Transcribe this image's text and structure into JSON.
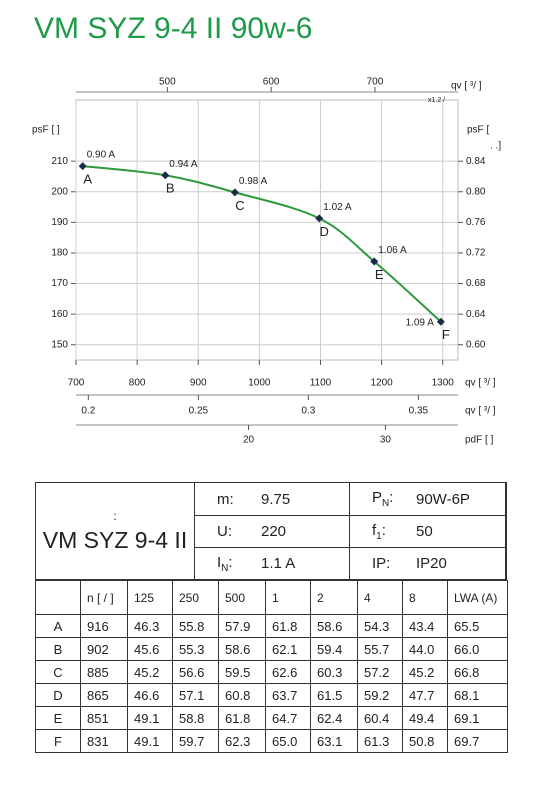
{
  "title": "VM SYZ 9-4 II 90w-6",
  "chart_data": {
    "type": "line",
    "color": "#2e9a3c",
    "point_color": "#1c2a4a",
    "grid": true,
    "x": [
      711,
      846,
      960,
      1098,
      1188,
      1297
    ],
    "values": [
      208.4,
      205.4,
      199.8,
      191.3,
      177.2,
      157.5
    ],
    "point_labels": [
      "A",
      "B",
      "C",
      "D",
      "E",
      "F"
    ],
    "current_labels": [
      "0.90 A",
      "0.94 A",
      "0.98 A",
      "1.02 A",
      "1.06 A",
      "1.09 A"
    ],
    "xlim": [
      700,
      1325
    ],
    "xticks": [
      700,
      800,
      900,
      1000,
      1100,
      1200,
      1300
    ],
    "x_label": "qv [  ³/  ]",
    "ylim": [
      145,
      230
    ],
    "yticks": [
      210,
      200,
      190,
      180,
      170,
      160,
      150
    ],
    "y_label": "psF [   ]",
    "y2lim": [
      0.58,
      0.92
    ],
    "y2ticks": [
      0.84,
      {
        "value": 0.8,
        "label": "0.80"
      },
      0.76,
      0.72,
      0.68,
      0.64,
      {
        "value": 0.6,
        "label": "0.60"
      }
    ],
    "y2_label": "psF [",
    "y2_label_2": ".   .]",
    "x2lim": [
      412,
      780
    ],
    "x2ticks": [
      500,
      600,
      700
    ],
    "x2_label": "qv [    ³/     ]",
    "x2_note": "x1.2  /",
    "x3lim": [
      0.1944,
      0.368
    ],
    "x3ticks": [
      0.2,
      0.25,
      0.3,
      0.35
    ],
    "x3_label": "qv [  ³/  ]",
    "x4lim": [
      7.4,
      35.3
    ],
    "x4ticks": [
      20,
      30
    ],
    "x4_label": "pdF [   ]"
  },
  "spec": {
    "colon": ":",
    "name": "VM SYZ 9-4 II",
    "cells": [
      [
        {
          "label": "m:",
          "value": "9.75"
        },
        {
          "label": "P",
          "sub": "N",
          "tail": ":",
          "value": "90W-6P"
        }
      ],
      [
        {
          "label": "U:",
          "value": "220"
        },
        {
          "label": "f",
          "sub": "1",
          "tail": ":",
          "value": "50"
        }
      ],
      [
        {
          "label": "I",
          "sub": "N",
          "tail": ":",
          "value": "1.1  A"
        },
        {
          "label": "IP:",
          "value": "IP20"
        }
      ]
    ]
  },
  "noise": {
    "headers": [
      "n [  /  ]",
      "125",
      "250",
      "500",
      "1",
      "2",
      "4",
      "8",
      "LWA      (A)"
    ],
    "rows": [
      [
        "A",
        "916",
        "46.3",
        "55.8",
        "57.9",
        "61.8",
        "58.6",
        "54.3",
        "43.4",
        "65.5"
      ],
      [
        "B",
        "902",
        "45.6",
        "55.3",
        "58.6",
        "62.1",
        "59.4",
        "55.7",
        "44.0",
        "66.0"
      ],
      [
        "C",
        "885",
        "45.2",
        "56.6",
        "59.5",
        "62.6",
        "60.3",
        "57.2",
        "45.2",
        "66.8"
      ],
      [
        "D",
        "865",
        "46.6",
        "57.1",
        "60.8",
        "63.7",
        "61.5",
        "59.2",
        "47.7",
        "68.1"
      ],
      [
        "E",
        "851",
        "49.1",
        "58.8",
        "61.8",
        "64.7",
        "62.4",
        "60.4",
        "49.4",
        "69.1"
      ],
      [
        "F",
        "831",
        "49.1",
        "59.7",
        "62.3",
        "65.0",
        "63.1",
        "61.3",
        "50.8",
        "69.7"
      ]
    ]
  }
}
